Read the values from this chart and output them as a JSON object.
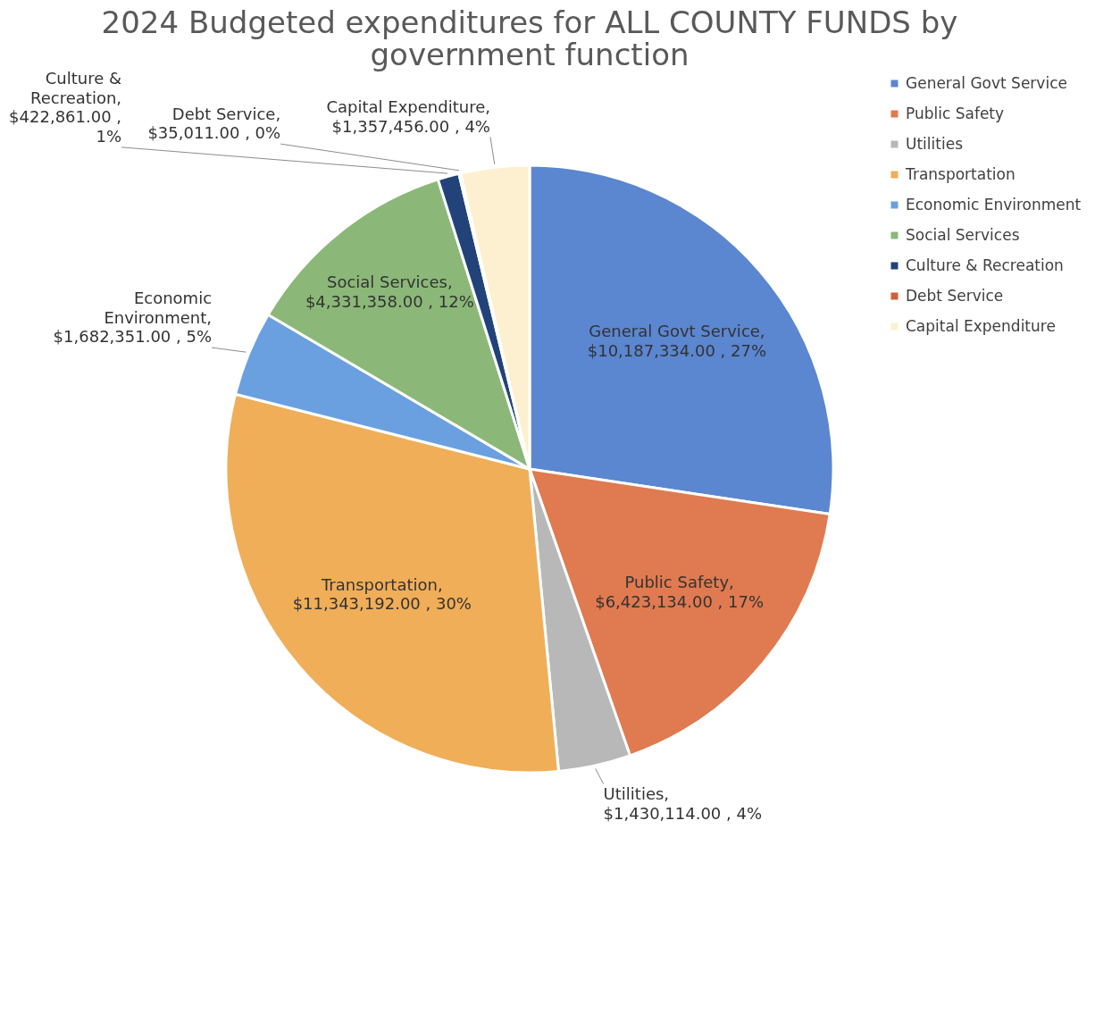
{
  "chart_data": {
    "type": "pie",
    "title": "2024 Budgeted expenditures for ALL COUNTY FUNDS by government function",
    "categories": [
      "General Govt Service",
      "Public Safety",
      "Utilities",
      "Transportation",
      "Economic Environment",
      "Social Services",
      "Culture & Recreation",
      "Debt Service",
      "Capital Expenditure"
    ],
    "values": [
      10187334,
      6423134,
      1430114,
      11343192,
      1682351,
      4331358,
      422861,
      35011,
      1357456
    ],
    "colors": [
      "#5b86d0",
      "#e07a50",
      "#b8b8b8",
      "#f0ae58",
      "#6aa0e0",
      "#8bb878",
      "#22427a",
      "#d0603a",
      "#fdf0d0"
    ],
    "value_labels": [
      "General Govt Service,\n$10,187,334.00 , 27%",
      "Public Safety,\n$6,423,134.00 , 17%",
      "Utilities,\n$1,430,114.00 , 4%",
      "Transportation,\n$11,343,192.00 , 30%",
      "Economic\nEnvironment,\n$1,682,351.00 , 5%",
      "Social Services,\n$4,331,358.00 , 12%",
      "Culture &\nRecreation,\n$422,861.00 ,\n1%",
      "Debt Service,\n$35,011.00 , 0%",
      "Capital Expenditure,\n$1,357,456.00 , 4%"
    ],
    "legend": "right"
  }
}
